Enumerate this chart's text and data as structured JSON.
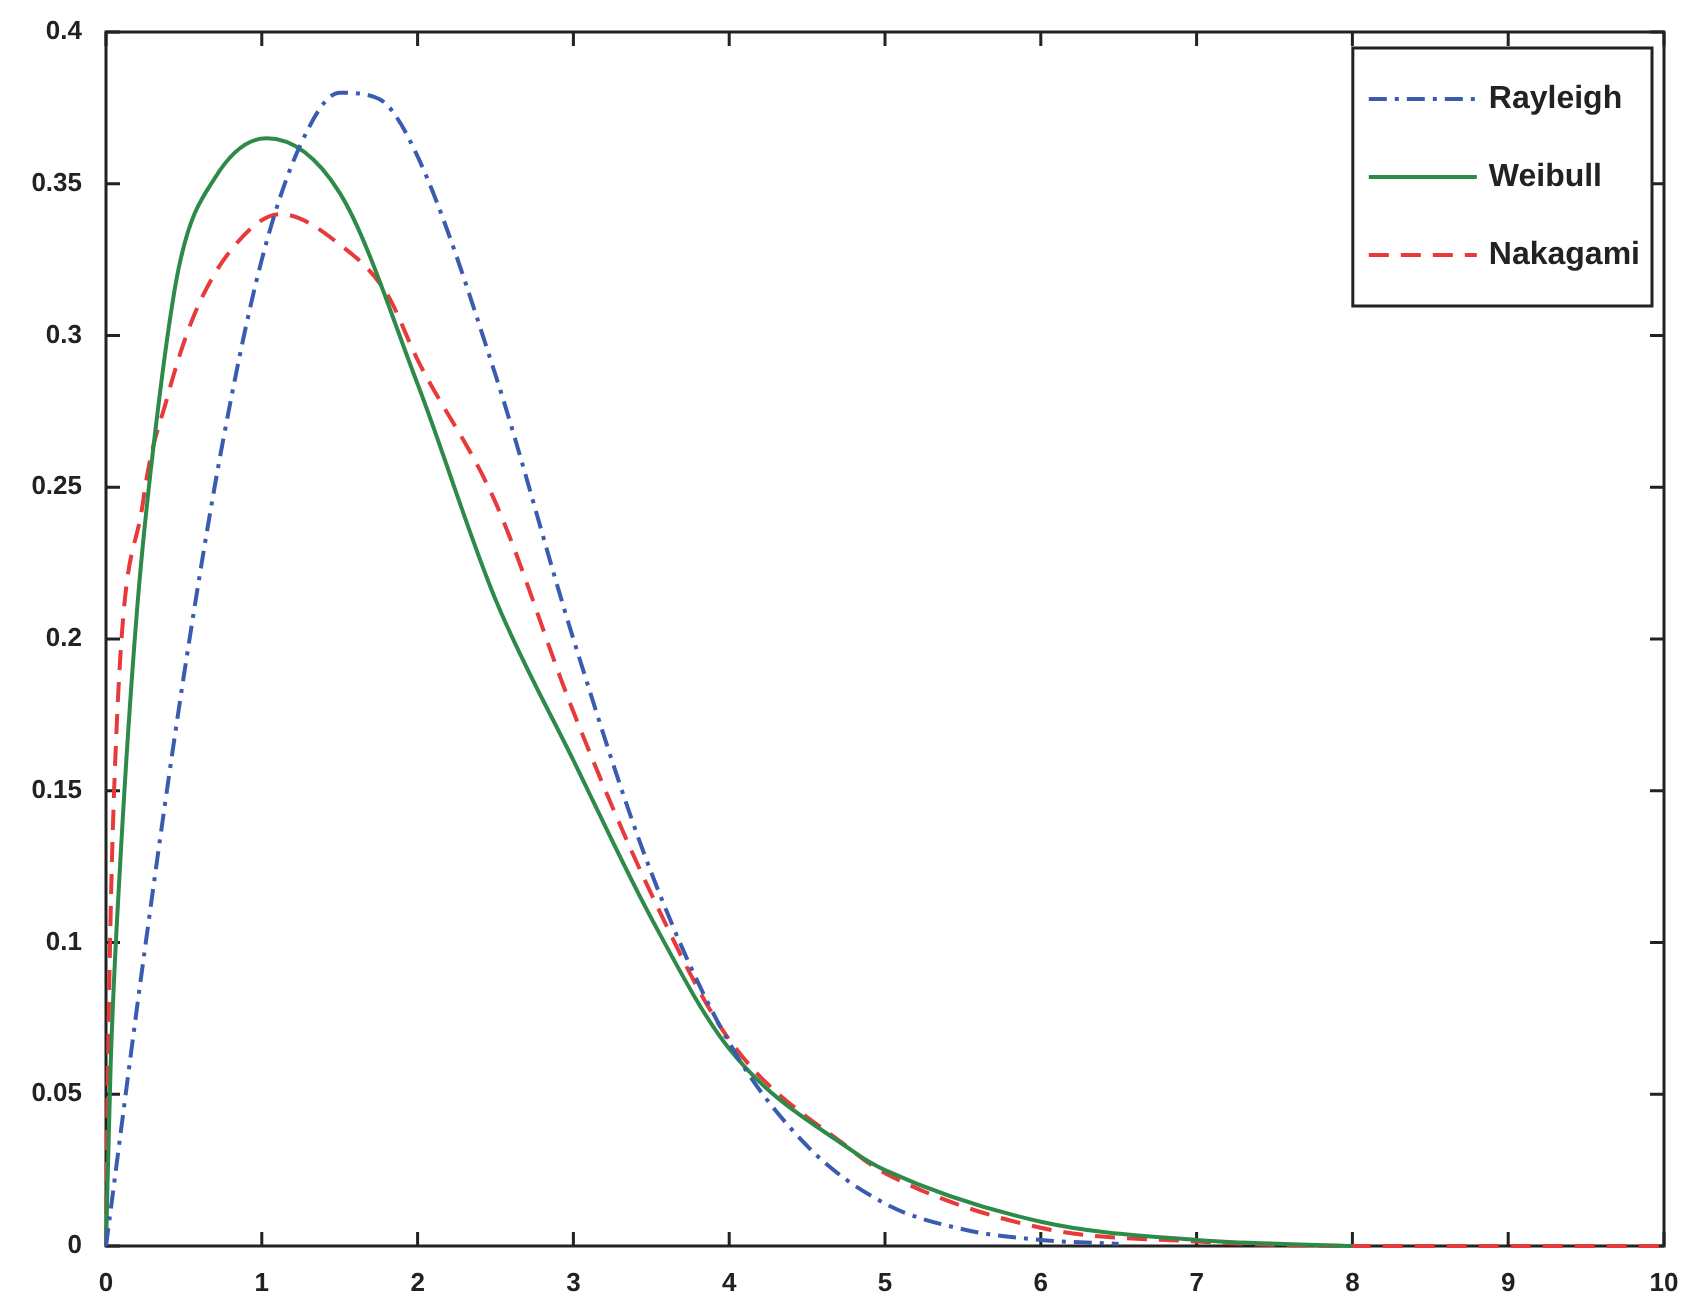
{
  "chart_data": {
    "type": "line",
    "xlim": [
      0,
      10
    ],
    "xticks": [
      0,
      1,
      2,
      3,
      4,
      5,
      6,
      7,
      8,
      9,
      10
    ],
    "ylim": [
      0,
      0.4
    ],
    "yticks": [
      0,
      0.05,
      0.1,
      0.15,
      0.2,
      0.25,
      0.3,
      0.35,
      0.4
    ],
    "grid": false,
    "legend": "top right",
    "marker": "none",
    "series": [
      {
        "name": "Rayleigh",
        "color": "#3a5cb0",
        "line_style": "dashdot",
        "x": [
          0,
          0.25,
          0.5,
          0.75,
          1,
          1.25,
          1.5,
          1.75,
          2,
          2.5,
          3,
          3.5,
          4,
          4.5,
          5,
          5.5,
          6,
          6.5
        ],
        "values": [
          0,
          0.098,
          0.188,
          0.265,
          0.325,
          0.363,
          0.38,
          0.378,
          0.359,
          0.287,
          0.2,
          0.123,
          0.067,
          0.033,
          0.014,
          0.0055,
          0.002,
          0.0007
        ]
      },
      {
        "name": "Weibull",
        "color": "#2e8a48",
        "line_style": "solid",
        "x": [
          0,
          0.03,
          0.09,
          0.2,
          0.32,
          0.47,
          0.7,
          1.03,
          1.5,
          2,
          2.5,
          3,
          3.5,
          4,
          4.8,
          5,
          6,
          7,
          8
        ],
        "values": [
          0,
          0.06,
          0.125,
          0.21,
          0.27,
          0.323,
          0.352,
          0.365,
          0.347,
          0.284,
          0.213,
          0.16,
          0.108,
          0.065,
          0.031,
          0.025,
          0.008,
          0.002,
          0
        ]
      },
      {
        "name": "Nakagami",
        "color": "#e83a3a",
        "line_style": "dashed",
        "x": [
          0,
          0.01,
          0.05,
          0.24,
          0.39,
          0.56,
          0.8,
          1.12,
          1.5,
          1.8,
          2,
          2.5,
          3,
          3.5,
          4,
          4.8,
          5,
          6,
          7,
          8,
          10
        ],
        "values": [
          0,
          0.05,
          0.147,
          0.246,
          0.279,
          0.306,
          0.328,
          0.34,
          0.33,
          0.314,
          0.292,
          0.245,
          0.176,
          0.116,
          0.068,
          0.031,
          0.024,
          0.006,
          0.0015,
          0,
          0
        ]
      }
    ]
  }
}
